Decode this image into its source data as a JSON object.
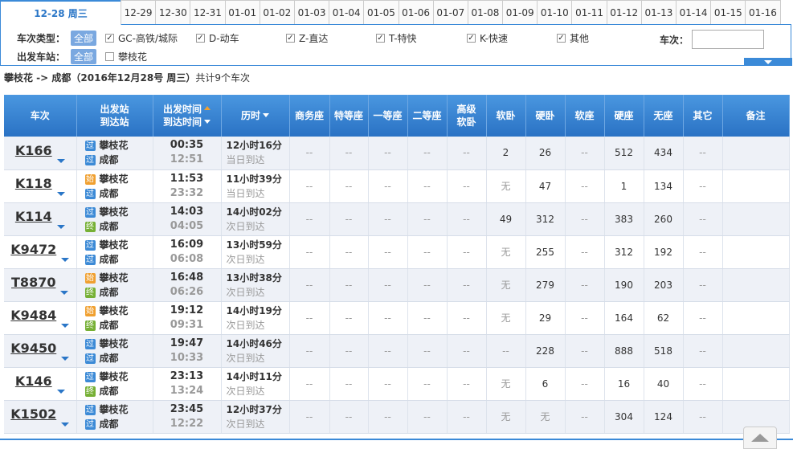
{
  "date_tabs": [
    "12-28 周三",
    "12-29",
    "12-30",
    "12-31",
    "01-01",
    "01-02",
    "01-03",
    "01-04",
    "01-05",
    "01-06",
    "01-07",
    "01-08",
    "01-09",
    "01-10",
    "01-11",
    "01-12",
    "01-13",
    "01-14",
    "01-15",
    "01-16"
  ],
  "filters": {
    "type_label": "车次类型：",
    "type_all": "全部",
    "types": [
      "GC-高铁/城际",
      "D-动车",
      "Z-直达",
      "T-特快",
      "K-快速",
      "其他"
    ],
    "train_no_label": "车次：",
    "station_label": "出发车站：",
    "station_all": "全部",
    "stations": [
      "攀枝花"
    ]
  },
  "summary": {
    "route": "攀枝花 -> 成都（2016年12月28号  周三）",
    "count": "共计9个车次"
  },
  "table": {
    "headers": [
      [
        "车次"
      ],
      [
        "出发站",
        "到达站"
      ],
      [
        "出发时间",
        "到达时间"
      ],
      [
        "历时"
      ],
      [
        "商务座"
      ],
      [
        "特等座"
      ],
      [
        "一等座"
      ],
      [
        "二等座"
      ],
      [
        "高级",
        "软卧"
      ],
      [
        "软卧"
      ],
      [
        "硬卧"
      ],
      [
        "软座"
      ],
      [
        "硬座"
      ],
      [
        "无座"
      ],
      [
        "其它"
      ],
      [
        "备注"
      ]
    ],
    "rows": [
      {
        "train": "K166",
        "from_tag": {
          "text": "过",
          "color": "#3c8ad6"
        },
        "from": "攀枝花",
        "to_tag": {
          "text": "过",
          "color": "#3c8ad6"
        },
        "to": "成都",
        "depart": "00:35",
        "arrive": "12:51",
        "duration": "12小时16分",
        "arrival_day": "当日到达",
        "seats": [
          "--",
          "--",
          "--",
          "--",
          "--",
          2,
          26,
          "--",
          512,
          434,
          "--"
        ]
      },
      {
        "train": "K118",
        "from_tag": {
          "text": "始",
          "color": "#f0a030"
        },
        "from": "攀枝花",
        "to_tag": {
          "text": "过",
          "color": "#3c8ad6"
        },
        "to": "成都",
        "depart": "11:53",
        "arrive": "23:32",
        "duration": "11小时39分",
        "arrival_day": "当日到达",
        "seats": [
          "--",
          "--",
          "--",
          "--",
          "--",
          "无",
          47,
          "--",
          1,
          134,
          "--"
        ]
      },
      {
        "train": "K114",
        "from_tag": {
          "text": "过",
          "color": "#3c8ad6"
        },
        "from": "攀枝花",
        "to_tag": {
          "text": "终",
          "color": "#76b035"
        },
        "to": "成都",
        "depart": "14:03",
        "arrive": "04:05",
        "duration": "14小时02分",
        "arrival_day": "次日到达",
        "seats": [
          "--",
          "--",
          "--",
          "--",
          "--",
          49,
          312,
          "--",
          383,
          260,
          "--"
        ]
      },
      {
        "train": "K9472",
        "from_tag": {
          "text": "过",
          "color": "#3c8ad6"
        },
        "from": "攀枝花",
        "to_tag": {
          "text": "过",
          "color": "#3c8ad6"
        },
        "to": "成都",
        "depart": "16:09",
        "arrive": "06:08",
        "duration": "13小时59分",
        "arrival_day": "次日到达",
        "seats": [
          "--",
          "--",
          "--",
          "--",
          "--",
          "无",
          255,
          "--",
          312,
          192,
          "--"
        ]
      },
      {
        "train": "T8870",
        "from_tag": {
          "text": "始",
          "color": "#f0a030"
        },
        "from": "攀枝花",
        "to_tag": {
          "text": "终",
          "color": "#76b035"
        },
        "to": "成都",
        "depart": "16:48",
        "arrive": "06:26",
        "duration": "13小时38分",
        "arrival_day": "次日到达",
        "seats": [
          "--",
          "--",
          "--",
          "--",
          "--",
          "无",
          279,
          "--",
          190,
          203,
          "--"
        ]
      },
      {
        "train": "K9484",
        "from_tag": {
          "text": "始",
          "color": "#f0a030"
        },
        "from": "攀枝花",
        "to_tag": {
          "text": "终",
          "color": "#76b035"
        },
        "to": "成都",
        "depart": "19:12",
        "arrive": "09:31",
        "duration": "14小时19分",
        "arrival_day": "次日到达",
        "seats": [
          "--",
          "--",
          "--",
          "--",
          "--",
          "无",
          29,
          "--",
          164,
          62,
          "--"
        ]
      },
      {
        "train": "K9450",
        "from_tag": {
          "text": "过",
          "color": "#3c8ad6"
        },
        "from": "攀枝花",
        "to_tag": {
          "text": "过",
          "color": "#3c8ad6"
        },
        "to": "成都",
        "depart": "19:47",
        "arrive": "10:33",
        "duration": "14小时46分",
        "arrival_day": "次日到达",
        "seats": [
          "--",
          "--",
          "--",
          "--",
          "--",
          "--",
          228,
          "--",
          888,
          518,
          "--"
        ]
      },
      {
        "train": "K146",
        "from_tag": {
          "text": "过",
          "color": "#3c8ad6"
        },
        "from": "攀枝花",
        "to_tag": {
          "text": "终",
          "color": "#76b035"
        },
        "to": "成都",
        "depart": "23:13",
        "arrive": "13:24",
        "duration": "14小时11分",
        "arrival_day": "次日到达",
        "seats": [
          "--",
          "--",
          "--",
          "--",
          "--",
          "无",
          6,
          "--",
          16,
          40,
          "--"
        ]
      },
      {
        "train": "K1502",
        "from_tag": {
          "text": "过",
          "color": "#3c8ad6"
        },
        "from": "攀枝花",
        "to_tag": {
          "text": "过",
          "color": "#3c8ad6"
        },
        "to": "成都",
        "depart": "23:45",
        "arrive": "12:22",
        "duration": "12小时37分",
        "arrival_day": "次日到达",
        "seats": [
          "--",
          "--",
          "--",
          "--",
          "--",
          "无",
          "无",
          "--",
          304,
          124,
          "--"
        ]
      }
    ]
  }
}
